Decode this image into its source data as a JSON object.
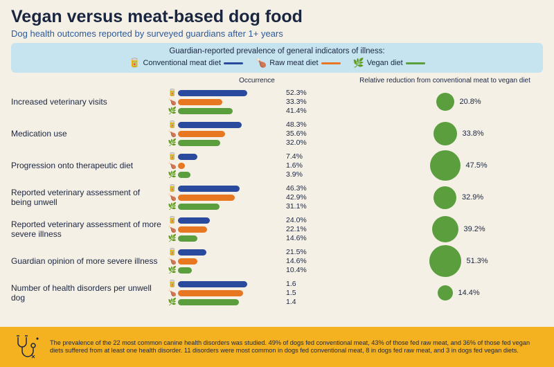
{
  "title": "Vegan versus meat-based dog food",
  "subtitle": "Dog health outcomes reported by surveyed guardians after 1+ years",
  "legend": {
    "title": "Guardian-reported prevalence of general indicators of illness:",
    "items": [
      {
        "icon": "🥫",
        "label": "Conventional meat diet",
        "color": "#2a4a9e"
      },
      {
        "icon": "🍗",
        "label": "Raw meat diet",
        "color": "#e87722"
      },
      {
        "icon": "🌿",
        "label": "Vegan diet",
        "color": "#5a9e3d"
      }
    ]
  },
  "headers": {
    "occurrence": "Occurrence",
    "relative": "Relative reduction from conventional meat to vegan diet"
  },
  "rows": [
    {
      "label": "Increased veterinary visits",
      "values": [
        "52.3%",
        "33.3%",
        "41.4%"
      ],
      "widths": [
        100,
        64,
        79
      ],
      "bubble": {
        "pct": "20.8%",
        "size": 26,
        "labelRight": true
      }
    },
    {
      "label": "Medication use",
      "values": [
        "48.3%",
        "35.6%",
        "32.0%"
      ],
      "widths": [
        92,
        68,
        61
      ],
      "bubble": {
        "pct": "33.8%",
        "size": 34,
        "labelRight": true
      }
    },
    {
      "label": "Progression onto therapeutic diet",
      "values": [
        "7.4%",
        "1.6%",
        "3.9%"
      ],
      "widths": [
        28,
        10,
        18
      ],
      "bubble": {
        "pct": "47.5%",
        "size": 44,
        "labelRight": true
      }
    },
    {
      "label": "Reported veterinary assessment of being unwell",
      "values": [
        "46.3%",
        "42.9%",
        "31.1%"
      ],
      "widths": [
        89,
        82,
        60
      ],
      "bubble": {
        "pct": "32.9%",
        "size": 33,
        "labelRight": true
      }
    },
    {
      "label": "Reported veterinary assessment of more severe illness",
      "values": [
        "24.0%",
        "22.1%",
        "14.6%"
      ],
      "widths": [
        46,
        42,
        28
      ],
      "bubble": {
        "pct": "39.2%",
        "size": 38,
        "labelRight": true
      }
    },
    {
      "label": "Guardian opinion of more severe illness",
      "values": [
        "21.5%",
        "14.6%",
        "10.4%"
      ],
      "widths": [
        41,
        28,
        20
      ],
      "bubble": {
        "pct": "51.3%",
        "size": 46,
        "labelRight": true
      }
    },
    {
      "label": "Number of health disorders per unwell dog",
      "values": [
        "1.6",
        "1.5",
        "1.4"
      ],
      "widths": [
        100,
        94,
        88
      ],
      "bubble": {
        "pct": "14.4%",
        "size": 22,
        "labelRight": true
      }
    }
  ],
  "colors": {
    "bars": [
      "#2a4a9e",
      "#e87722",
      "#5a9e3d"
    ],
    "bubble": "#5a9e3d",
    "background": "#f5f0e6",
    "legendBg": "#c5e4f0",
    "footerBg": "#f5b220",
    "text": "#1a2540",
    "subtitle": "#2a5a9e"
  },
  "footer": {
    "text": "The prevalence of the 22 most common canine health disorders was studied. 49% of dogs fed conventional meat, 43% of those fed raw meat, and 36% of those fed vegan diets suffered from at least one health disorder. 11 disorders were most common in dogs fed conventional meat, 8 in dogs fed raw meat, and 3 in dogs fed vegan diets."
  },
  "barIcons": [
    "🥫",
    "🍗",
    "🌿"
  ]
}
